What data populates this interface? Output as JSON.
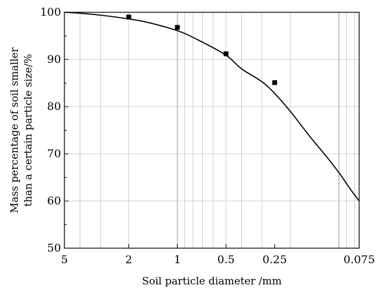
{
  "chart_data": {
    "type": "scatter",
    "title": "",
    "xlabel": "Soil particle diameter /mm",
    "ylabel_line1": "Mass percentage of soil smaller",
    "ylabel_line2": "than a certain particle size/%",
    "x_scale": "log-reversed",
    "xlim": [
      5,
      0.075
    ],
    "ylim": [
      50,
      100
    ],
    "x_ticks": [
      5,
      2,
      1,
      0.5,
      0.25,
      0.075
    ],
    "x_tick_labels": [
      "5",
      "2",
      "1",
      "0.5",
      "0.25",
      "0.075"
    ],
    "y_ticks": [
      50,
      60,
      70,
      80,
      90,
      100
    ],
    "y_tick_labels": [
      "50",
      "60",
      "70",
      "80",
      "90",
      "100"
    ],
    "grid": true,
    "series": [
      {
        "style": "markers",
        "marker": "square",
        "color": "#000000",
        "x": [
          2,
          1,
          0.5,
          0.25
        ],
        "y": [
          99.0,
          96.8,
          91.2,
          85.1
        ]
      },
      {
        "style": "line",
        "color": "#000000",
        "x": [
          5,
          4,
          3,
          2,
          1.5,
          1,
          0.75,
          0.5,
          0.4,
          0.3,
          0.25,
          0.2,
          0.15,
          0.12,
          0.1,
          0.085,
          0.075
        ],
        "y": [
          100,
          99.8,
          99.4,
          98.6,
          97.8,
          96.1,
          94.2,
          90.9,
          88.0,
          85.3,
          82.8,
          79.0,
          73.5,
          69.5,
          66.0,
          62.5,
          60.0
        ]
      }
    ]
  }
}
